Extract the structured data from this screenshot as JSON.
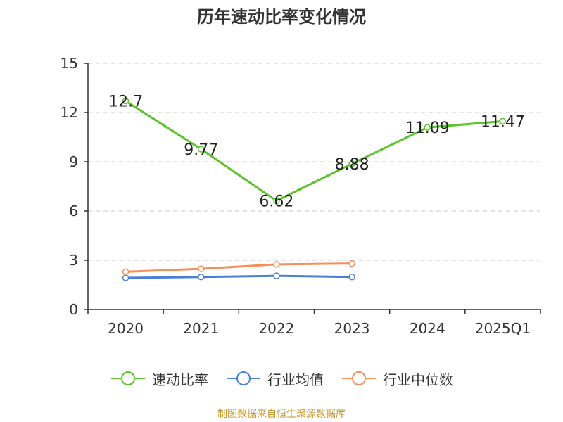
{
  "chart_data": {
    "type": "line",
    "title": "历年速动比率变化情况",
    "categories": [
      "2020",
      "2021",
      "2022",
      "2023",
      "2024",
      "2025Q1"
    ],
    "ylim": [
      0,
      15
    ],
    "yticks": [
      0,
      3,
      6,
      9,
      12,
      15
    ],
    "grid": true,
    "legend_position": "bottom",
    "series": [
      {
        "name": "速动比率",
        "color": "#5cc42a",
        "values": [
          12.7,
          9.77,
          6.62,
          8.88,
          11.09,
          11.47
        ],
        "labels": [
          "12.7",
          "9.77",
          "6.62",
          "8.88",
          "11.09",
          "11.47"
        ]
      },
      {
        "name": "行业均值",
        "color": "#4a7fd6",
        "values": [
          1.93,
          1.98,
          2.05,
          1.98,
          null,
          null
        ]
      },
      {
        "name": "行业中位数",
        "color": "#f5905a",
        "values": [
          2.3,
          2.48,
          2.75,
          2.8,
          null,
          null
        ]
      }
    ]
  },
  "footer": "制图数据来自恒生聚源数据库"
}
